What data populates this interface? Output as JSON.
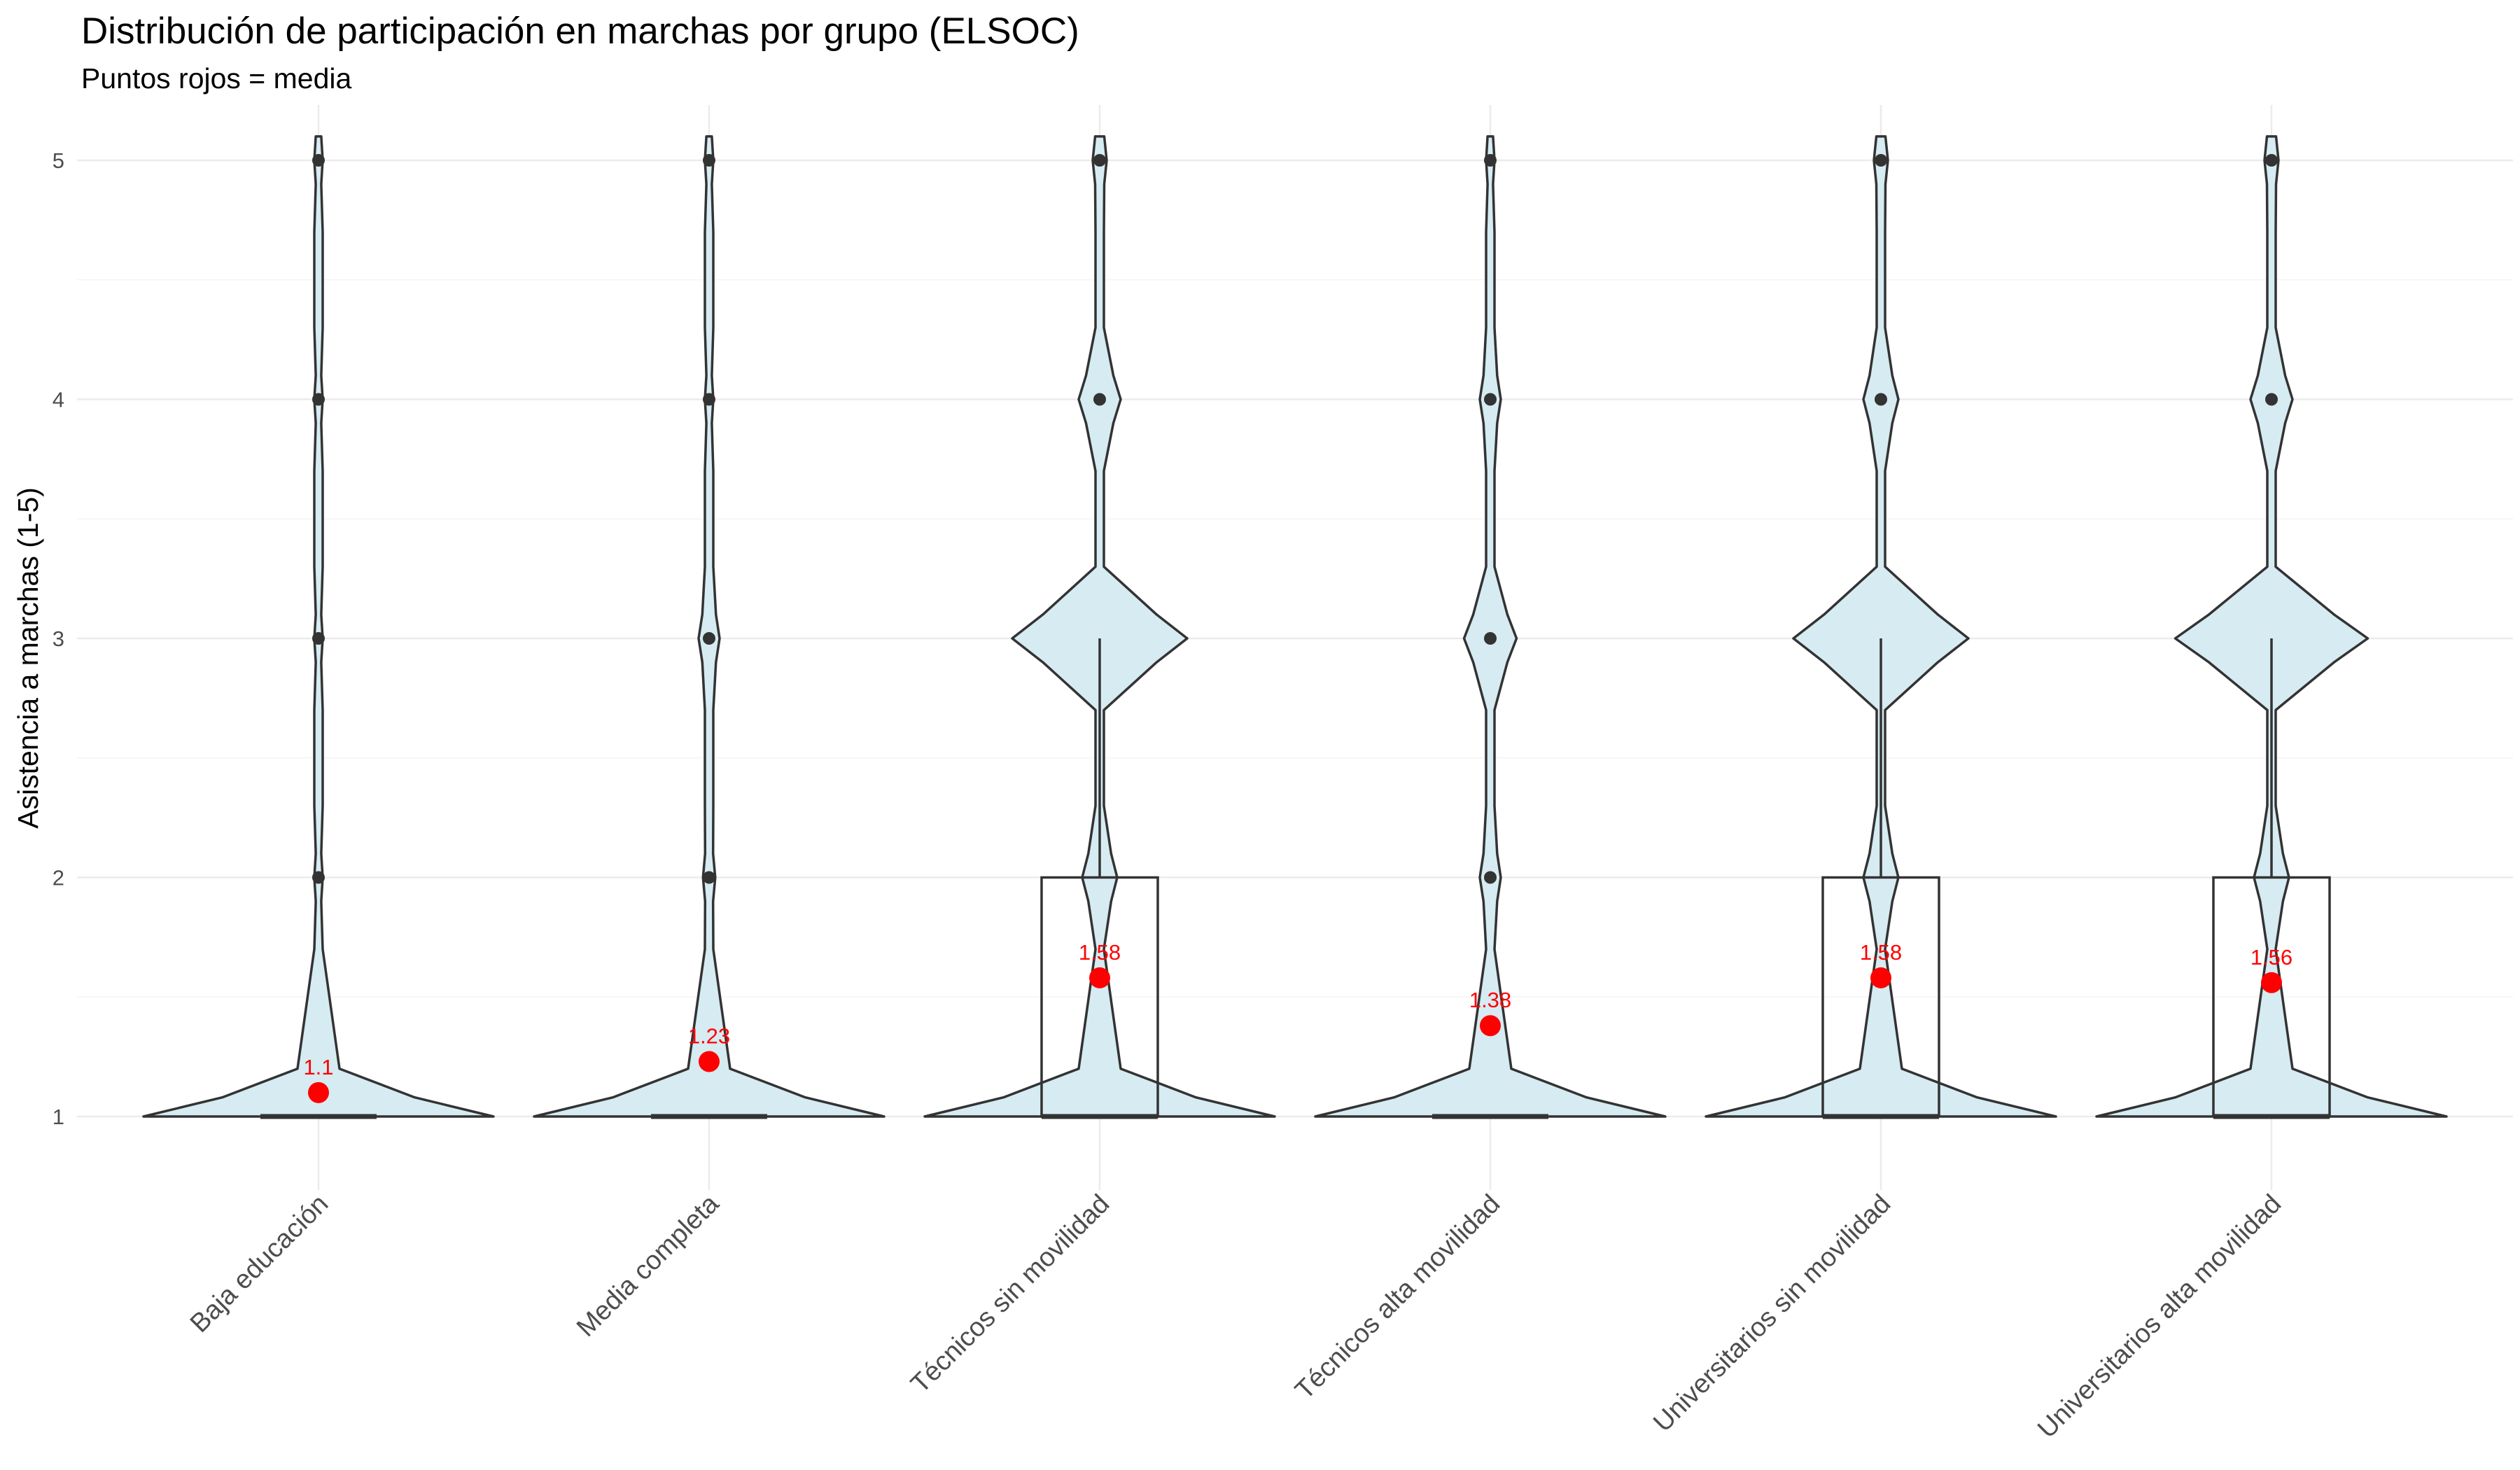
{
  "chart_data": {
    "type": "violin",
    "title": "Distribución de participación en marchas por grupo (ELSOC)",
    "subtitle": "Puntos rojos = media",
    "xlabel": "",
    "ylabel": "Asistencia a marchas (1-5)",
    "ylim": [
      0.85,
      5.2
    ],
    "yticks": [
      1,
      2,
      3,
      4,
      5
    ],
    "grid": true,
    "colors": {
      "violin_fill": "#d6ebf2",
      "outline": "#333333",
      "mean": "#ff0000",
      "label": "#ff0000"
    },
    "categories": [
      "Baja educación",
      "Media completa",
      "Técnicos sin movilidad",
      "Técnicos alta movilidad",
      "Universitarios sin movilidad",
      "Universitarios alta movilidad"
    ],
    "means": [
      1.1,
      1.23,
      1.58,
      1.38,
      1.58,
      1.56
    ],
    "mean_labels": [
      "1.1",
      "1.23",
      "1.58",
      "1.38",
      "1.58",
      "1.56"
    ],
    "boxes": [
      {
        "min": 1,
        "q1": 1,
        "median": 1,
        "q3": 1,
        "max": 1,
        "outliers": [
          2,
          3,
          4,
          5
        ]
      },
      {
        "min": 1,
        "q1": 1,
        "median": 1,
        "q3": 1,
        "max": 1,
        "outliers": [
          2,
          3,
          4,
          5
        ]
      },
      {
        "min": 1,
        "q1": 1,
        "median": 1,
        "q3": 2,
        "max": 3,
        "outliers": [
          4,
          5
        ]
      },
      {
        "min": 1,
        "q1": 1,
        "median": 1,
        "q3": 1,
        "max": 1,
        "outliers": [
          2,
          3,
          4,
          5
        ]
      },
      {
        "min": 1,
        "q1": 1,
        "median": 1,
        "q3": 2,
        "max": 3,
        "outliers": [
          4,
          5
        ]
      },
      {
        "min": 1,
        "q1": 1,
        "median": 1,
        "q3": 2,
        "max": 3,
        "outliers": [
          4,
          5
        ]
      }
    ],
    "density_relative": [
      [
        1.0,
        0.013,
        0.004,
        0.003,
        0.001
      ],
      [
        1.0,
        0.035,
        0.06,
        0.02,
        0.012
      ],
      [
        1.0,
        0.1,
        0.5,
        0.12,
        0.04
      ],
      [
        1.0,
        0.06,
        0.15,
        0.06,
        0.02
      ],
      [
        1.0,
        0.1,
        0.5,
        0.1,
        0.04
      ],
      [
        1.0,
        0.1,
        0.55,
        0.12,
        0.04
      ]
    ]
  }
}
